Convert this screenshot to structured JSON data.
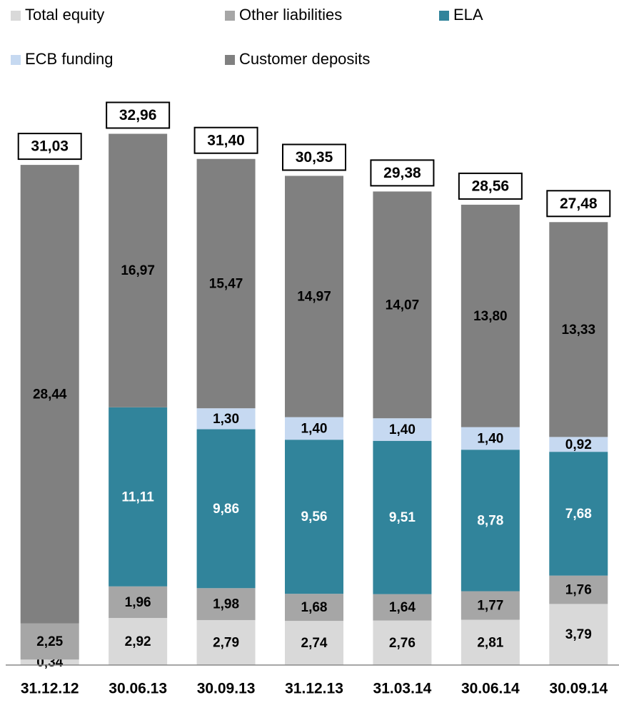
{
  "chart_data": {
    "type": "stacked-bar",
    "categories": [
      "31.12.12",
      "30.06.13",
      "30.09.13",
      "31.12.13",
      "31.03.14",
      "30.06.14",
      "30.09.14"
    ],
    "series": [
      {
        "name": "Total equity",
        "color": "#d9d9d9",
        "values": [
          0.34,
          2.92,
          2.79,
          2.74,
          2.76,
          2.81,
          3.79
        ],
        "value_labels": [
          "0,34",
          "2,92",
          "2,79",
          "2,74",
          "2,76",
          "2,81",
          "3,79"
        ]
      },
      {
        "name": "Other liabilities",
        "color": "#a6a6a6",
        "values": [
          2.25,
          1.96,
          1.98,
          1.68,
          1.64,
          1.77,
          1.76
        ],
        "value_labels": [
          "2,25",
          "1,96",
          "1,98",
          "1,68",
          "1,64",
          "1,77",
          "1,76"
        ]
      },
      {
        "name": "ELA",
        "color": "#31849b",
        "values": [
          null,
          11.11,
          9.86,
          9.56,
          9.51,
          8.78,
          7.68
        ],
        "value_labels": [
          null,
          "11,11",
          "9,86",
          "9,56",
          "9,51",
          "8,78",
          "7,68"
        ]
      },
      {
        "name": "ECB funding",
        "color": "#c6d9f1",
        "values": [
          null,
          null,
          1.3,
          1.4,
          1.4,
          1.4,
          0.92
        ],
        "value_labels": [
          null,
          null,
          "1,30",
          "1,40",
          "1,40",
          "1,40",
          "0,92"
        ]
      },
      {
        "name": "Customer deposits",
        "color": "#808080",
        "values": [
          28.44,
          16.97,
          15.47,
          14.97,
          14.07,
          13.8,
          13.33
        ],
        "value_labels": [
          "28,44",
          "16,97",
          "15,47",
          "14,97",
          "14,07",
          "13,80",
          "13,33"
        ]
      }
    ],
    "totals": [
      31.03,
      32.96,
      31.4,
      30.35,
      29.38,
      28.56,
      27.48
    ],
    "total_labels": [
      "31,03",
      "32,96",
      "31,40",
      "30,35",
      "29,38",
      "28,56",
      "27,48"
    ],
    "ylim": [
      0,
      34
    ]
  }
}
